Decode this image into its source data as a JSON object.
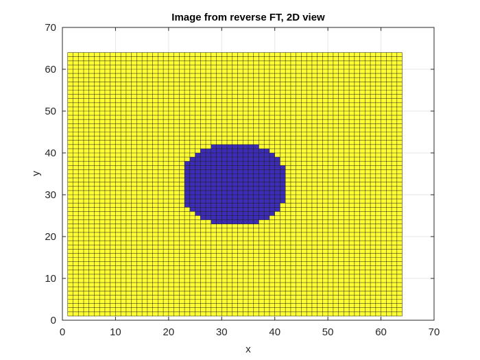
{
  "chart_data": {
    "type": "heatmap",
    "title": "Image from reverse FT, 2D view",
    "xlabel": "x",
    "ylabel": "y",
    "xlim": [
      0,
      70
    ],
    "ylim": [
      0,
      70
    ],
    "x_ticks": [
      0,
      10,
      20,
      30,
      40,
      50,
      60,
      70
    ],
    "y_ticks": [
      0,
      10,
      20,
      30,
      40,
      50,
      60,
      70
    ],
    "grid": true,
    "grid_x_range": [
      1,
      64
    ],
    "grid_y_range": [
      1,
      64
    ],
    "background_value": 1,
    "shape_value": 0,
    "shape_rows": [
      {
        "y": 23,
        "x_start": 28,
        "x_end": 37
      },
      {
        "y": 24,
        "x_start": 26,
        "x_end": 39
      },
      {
        "y": 25,
        "x_start": 25,
        "x_end": 40
      },
      {
        "y": 26,
        "x_start": 24,
        "x_end": 41
      },
      {
        "y": 27,
        "x_start": 23,
        "x_end": 41
      },
      {
        "y": 28,
        "x_start": 23,
        "x_end": 42
      },
      {
        "y": 29,
        "x_start": 23,
        "x_end": 42
      },
      {
        "y": 30,
        "x_start": 23,
        "x_end": 42
      },
      {
        "y": 31,
        "x_start": 23,
        "x_end": 42
      },
      {
        "y": 32,
        "x_start": 23,
        "x_end": 42
      },
      {
        "y": 33,
        "x_start": 23,
        "x_end": 42
      },
      {
        "y": 34,
        "x_start": 23,
        "x_end": 42
      },
      {
        "y": 35,
        "x_start": 23,
        "x_end": 42
      },
      {
        "y": 36,
        "x_start": 23,
        "x_end": 42
      },
      {
        "y": 37,
        "x_start": 23,
        "x_end": 41
      },
      {
        "y": 38,
        "x_start": 24,
        "x_end": 41
      },
      {
        "y": 39,
        "x_start": 25,
        "x_end": 40
      },
      {
        "y": 40,
        "x_start": 26,
        "x_end": 39
      },
      {
        "y": 41,
        "x_start": 28,
        "x_end": 37
      }
    ],
    "colors": {
      "background": "#FFFF33",
      "shape": "#3D2DB5",
      "edge": "#1a1a1a",
      "axis": "#262626",
      "gridline": "#e6e6e6"
    }
  }
}
